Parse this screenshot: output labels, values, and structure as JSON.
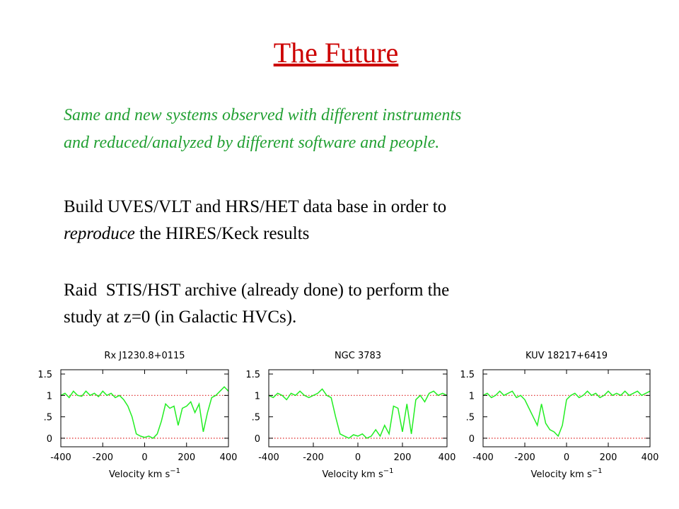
{
  "title": "The Future",
  "intro": [
    "Same and new systems observed with different instruments",
    "and reduced/analyzed by different software and people."
  ],
  "paragraphs": [
    {
      "line1": "Build UVES/VLT and HRS/HET data base in order to",
      "line2_italic": "reproduce",
      "line2_rest": " the HIRES/Keck results"
    },
    {
      "line1": "Raid  STIS/HST archive (already done) to perform the",
      "line2_italic": "",
      "line2_rest": "study at z=0 (in Galactic HVCs)."
    }
  ],
  "chart_data": [
    {
      "type": "line",
      "title": "Rx J1230.8+0115",
      "color": "#22ee22",
      "xlabel": "Velocity km s",
      "xlabel_sup": "−1",
      "xlim": [
        -400,
        400
      ],
      "ylim": [
        -0.2,
        1.6
      ],
      "xticks": [
        -400,
        -200,
        0,
        200,
        400
      ],
      "yticks": [
        0,
        {
          "value": 0.5,
          "label": ".5"
        },
        1,
        1.5
      ],
      "hlines": [
        0,
        1
      ],
      "hline_color": "#dd2222",
      "x": [
        -400,
        -380,
        -360,
        -340,
        -320,
        -300,
        -280,
        -260,
        -240,
        -220,
        -200,
        -180,
        -160,
        -140,
        -120,
        -100,
        -80,
        -60,
        -40,
        -20,
        0,
        20,
        40,
        60,
        80,
        100,
        120,
        140,
        160,
        180,
        200,
        220,
        240,
        260,
        280,
        300,
        320,
        340,
        360,
        380,
        400
      ],
      "values": [
        1.0,
        1.05,
        0.95,
        1.1,
        1.0,
        0.98,
        1.1,
        1.0,
        1.05,
        0.97,
        1.1,
        1.0,
        1.05,
        0.95,
        1.0,
        0.9,
        0.75,
        0.5,
        0.1,
        0.05,
        0.02,
        0.05,
        0.0,
        0.1,
        0.4,
        0.8,
        0.7,
        0.75,
        0.3,
        0.7,
        0.75,
        0.85,
        0.6,
        0.8,
        0.15,
        0.6,
        0.95,
        1.0,
        1.1,
        1.2,
        1.1
      ]
    },
    {
      "type": "line",
      "title": "NGC 3783",
      "color": "#22ee22",
      "xlabel": "Velocity km s",
      "xlabel_sup": "−1",
      "xlim": [
        -400,
        400
      ],
      "ylim": [
        -0.2,
        1.6
      ],
      "xticks": [
        -400,
        -200,
        0,
        200,
        400
      ],
      "yticks": [
        0,
        {
          "value": 0.5,
          "label": ".5"
        },
        1,
        1.5
      ],
      "hlines": [
        0,
        1
      ],
      "hline_color": "#dd2222",
      "x": [
        -400,
        -380,
        -360,
        -340,
        -320,
        -300,
        -280,
        -260,
        -240,
        -220,
        -200,
        -180,
        -160,
        -140,
        -120,
        -100,
        -80,
        -60,
        -40,
        -20,
        0,
        20,
        40,
        60,
        80,
        100,
        120,
        140,
        160,
        180,
        200,
        220,
        240,
        260,
        280,
        300,
        320,
        340,
        360,
        380,
        400
      ],
      "values": [
        1.0,
        0.95,
        1.05,
        1.0,
        0.9,
        1.05,
        1.0,
        1.1,
        1.0,
        0.95,
        1.0,
        1.05,
        1.15,
        1.0,
        0.95,
        0.5,
        0.1,
        0.05,
        0.0,
        0.08,
        0.05,
        0.1,
        0.0,
        0.05,
        0.2,
        0.05,
        0.3,
        0.1,
        0.75,
        0.7,
        0.15,
        0.8,
        0.1,
        0.9,
        1.0,
        0.85,
        1.05,
        1.1,
        1.0,
        1.05,
        1.0
      ]
    },
    {
      "type": "line",
      "title": "KUV 18217+6419",
      "color": "#22ee22",
      "xlabel": "Velocity km s",
      "xlabel_sup": "−1",
      "xlim": [
        -400,
        400
      ],
      "ylim": [
        -0.2,
        1.6
      ],
      "xticks": [
        -400,
        -200,
        0,
        200,
        400
      ],
      "yticks": [
        0,
        {
          "value": 0.5,
          "label": ".5"
        },
        1,
        1.5
      ],
      "hlines": [
        0,
        1
      ],
      "hline_color": "#dd2222",
      "x": [
        -400,
        -380,
        -360,
        -340,
        -320,
        -300,
        -280,
        -260,
        -240,
        -220,
        -200,
        -180,
        -160,
        -140,
        -120,
        -100,
        -80,
        -60,
        -40,
        -20,
        0,
        20,
        40,
        60,
        80,
        100,
        120,
        140,
        160,
        180,
        200,
        220,
        240,
        260,
        280,
        300,
        320,
        340,
        360,
        380,
        400
      ],
      "values": [
        1.0,
        1.05,
        0.95,
        1.0,
        1.1,
        1.0,
        1.05,
        1.1,
        0.95,
        1.0,
        0.9,
        0.7,
        0.5,
        0.3,
        0.8,
        0.35,
        0.2,
        0.15,
        0.05,
        0.3,
        0.9,
        1.0,
        1.05,
        0.95,
        1.0,
        1.1,
        1.0,
        1.05,
        0.95,
        1.0,
        1.1,
        1.0,
        1.05,
        1.0,
        1.1,
        1.0,
        1.05,
        1.1,
        1.0,
        1.05,
        1.1
      ]
    }
  ]
}
